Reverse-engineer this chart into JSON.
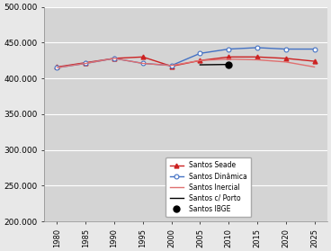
{
  "years": [
    1980,
    1985,
    1990,
    1995,
    2000,
    2005,
    2010,
    2015,
    2020,
    2025
  ],
  "seade": [
    416000,
    422000,
    428000,
    430000,
    417000,
    425000,
    430000,
    430000,
    428000,
    424000
  ],
  "dinamica": [
    415000,
    421000,
    428000,
    421000,
    418000,
    435000,
    441000,
    443000,
    441000,
    441000
  ],
  "inercial": [
    415000,
    421000,
    428000,
    421000,
    418000,
    425000,
    427000,
    426000,
    423000,
    416000
  ],
  "porto": [
    null,
    null,
    null,
    null,
    null,
    419000,
    419500,
    null,
    null,
    null
  ],
  "ibge": [
    null,
    null,
    null,
    null,
    null,
    null,
    419500,
    null,
    null,
    null
  ],
  "seade_color": "#cc2222",
  "dinamica_color": "#4472c4",
  "inercial_color": "#e07070",
  "porto_color": "#000000",
  "ibge_color": "#000000",
  "ylim": [
    200000,
    500000
  ],
  "yticks": [
    200000,
    250000,
    300000,
    350000,
    400000,
    450000,
    500000
  ],
  "plot_bg": "#d4d4d4",
  "fig_bg": "#e8e8e8",
  "legend_labels": [
    "Santos Seade",
    "Santos Dinâmica",
    "Santos Inercial",
    "Santos c/ Porto",
    "Santos IBGE"
  ]
}
